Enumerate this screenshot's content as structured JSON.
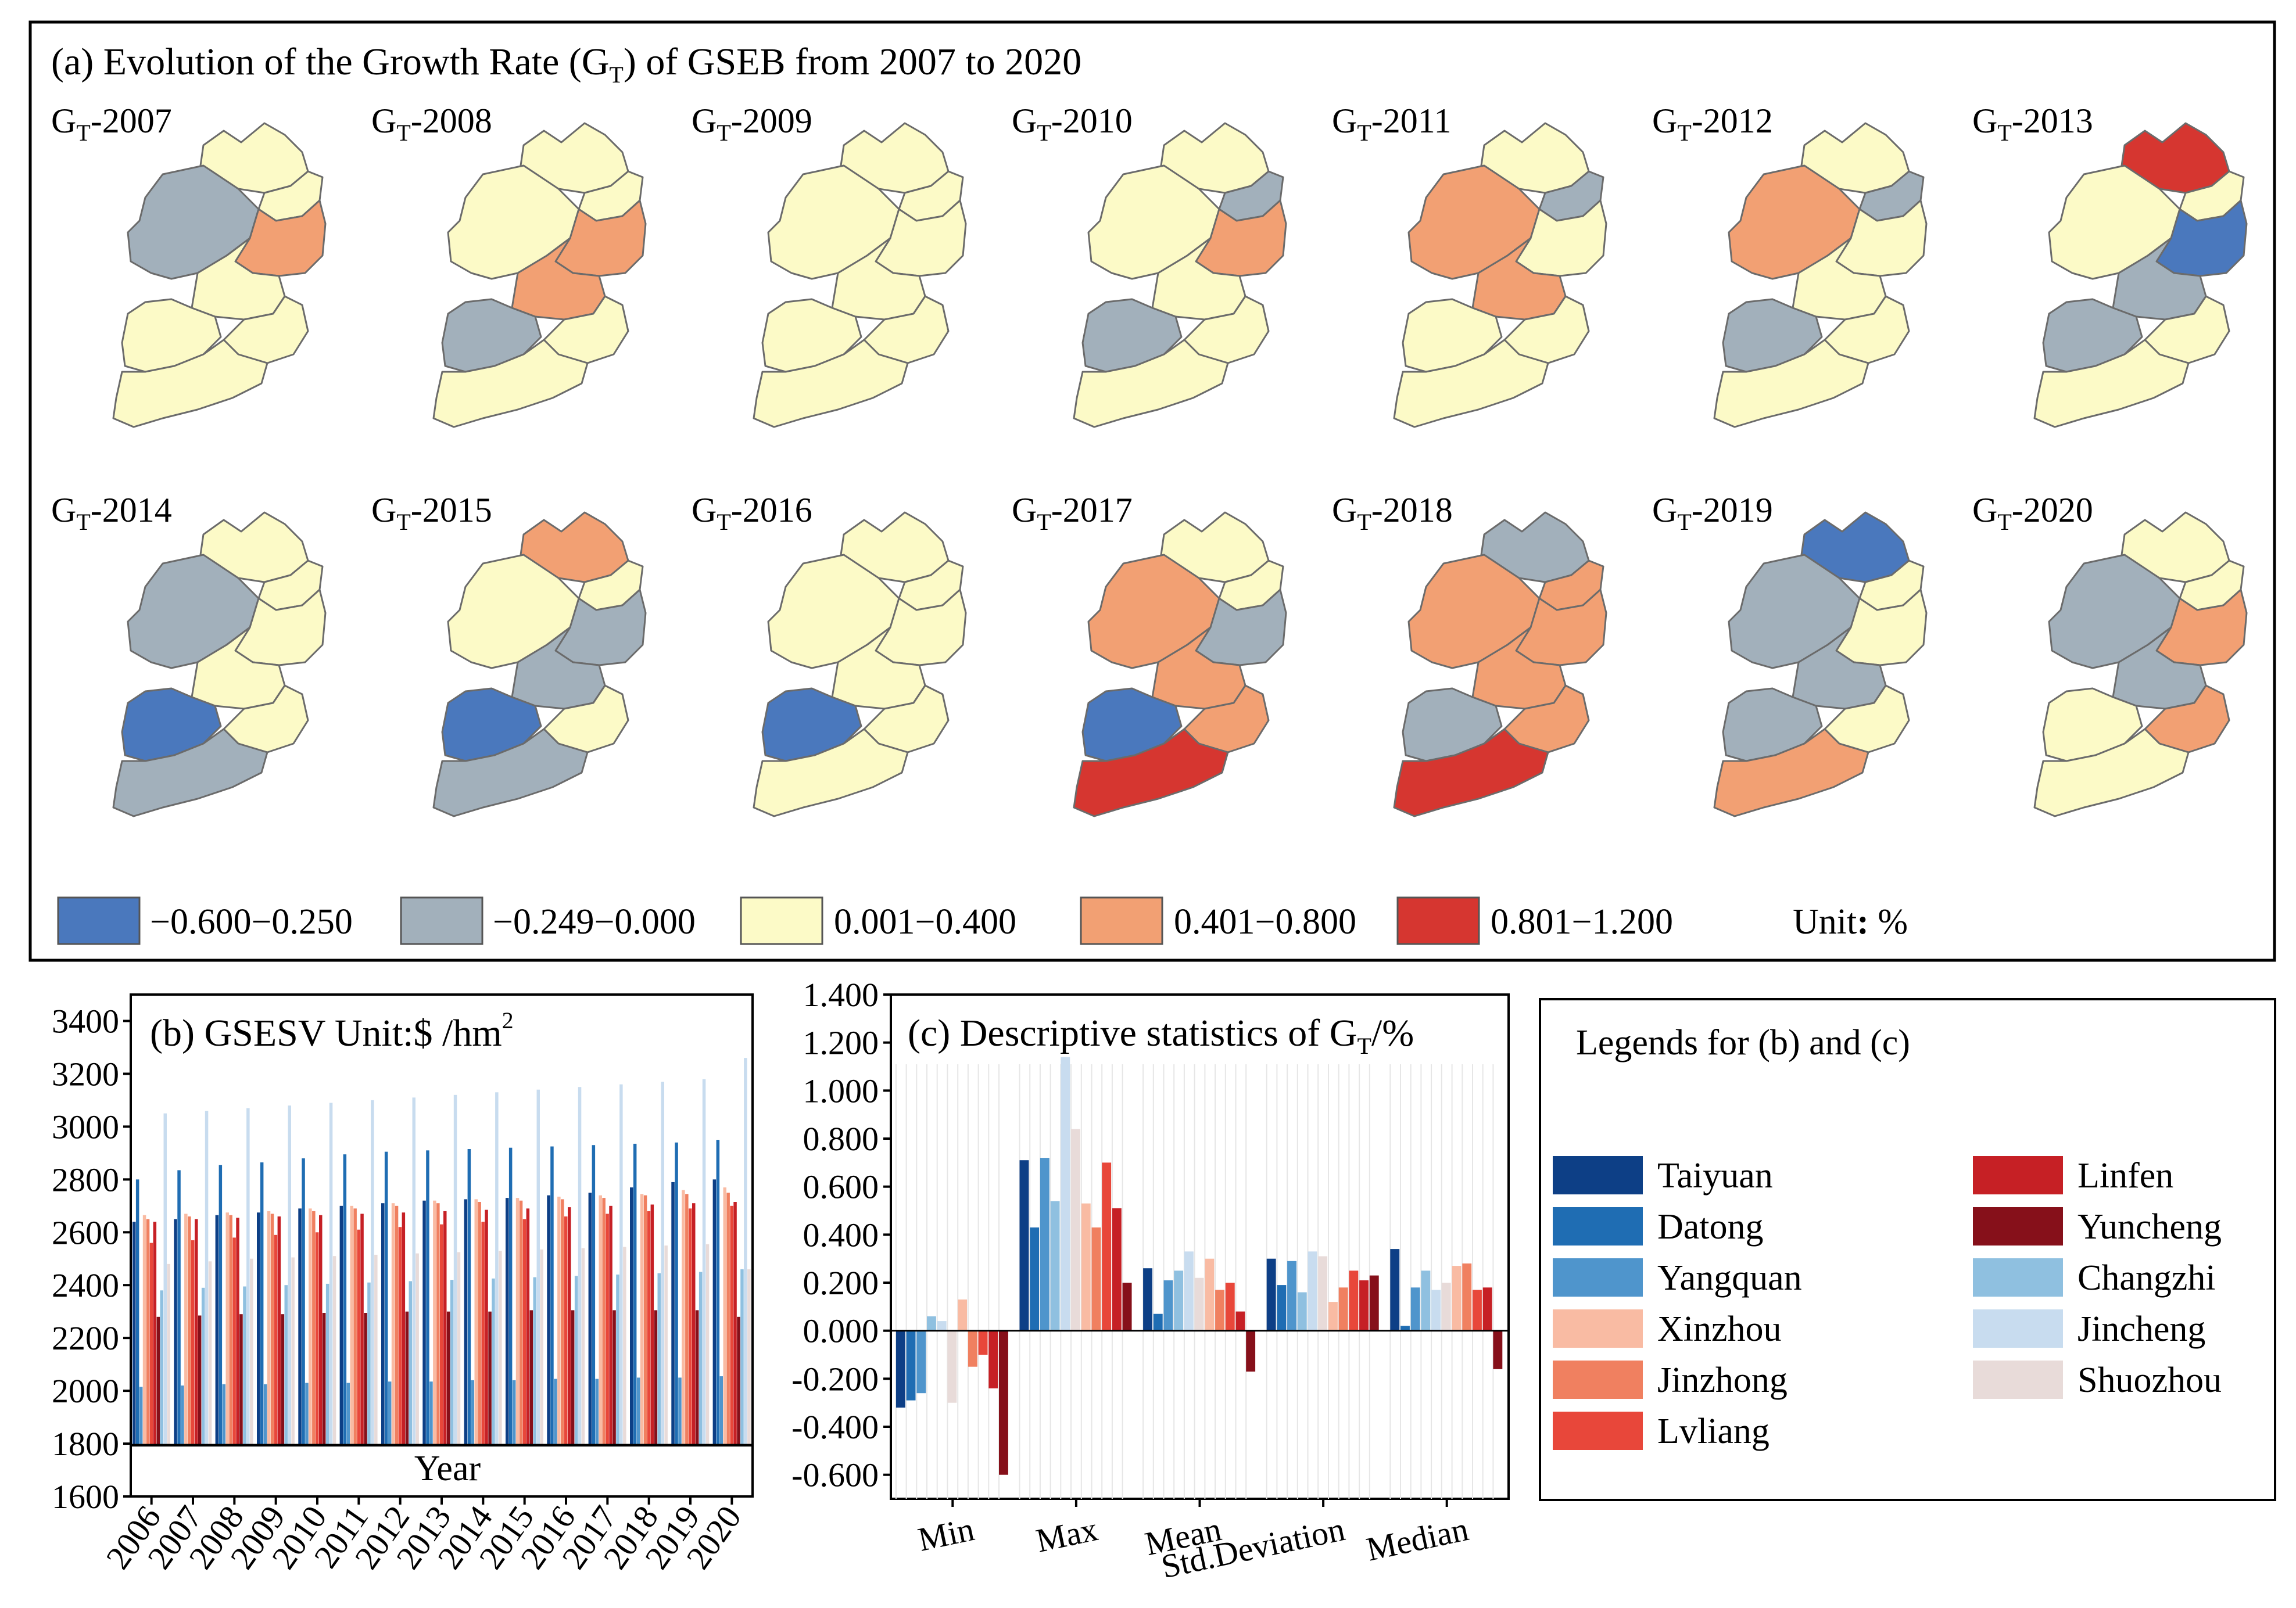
{
  "panel_a": {
    "title": "(a) Evolution of the Growth Rate (G",
    "title_sub": "T",
    "title_tail": ") of GSEB from 2007 to 2020",
    "map_prefix": "G",
    "map_sub": "T",
    "maps": [
      {
        "year": "-2007"
      },
      {
        "year": "-2008"
      },
      {
        "year": "-2009"
      },
      {
        "year": "-2010"
      },
      {
        "year": "-2011"
      },
      {
        "year": "-2012"
      },
      {
        "year": "-2013"
      },
      {
        "year": "-2014"
      },
      {
        "year": "-2015"
      },
      {
        "year": "-2016"
      },
      {
        "year": "-2017"
      },
      {
        "year": "-2018"
      },
      {
        "year": "-2019"
      },
      {
        "year": "-2020"
      }
    ],
    "legend": [
      {
        "label": "−0.600−0.250",
        "color": "#4a78bd"
      },
      {
        "label": "−0.249−0.000",
        "color": "#a2b0bb"
      },
      {
        "label": "0.001−0.400",
        "color": "#fcfac7"
      },
      {
        "label": "0.401−0.800",
        "color": "#f2a073"
      },
      {
        "label": "0.801−1.200",
        "color": "#d63630"
      }
    ],
    "unit_label": "Unit",
    "unit_colon": ":",
    "unit_value": " %"
  },
  "chart_data": [
    {
      "type": "bar",
      "title": "(b) GSESV  Unit:$ /hm",
      "title_sup": "2",
      "xlabel": "Year",
      "ylabel": "",
      "ylim": [
        1600,
        3500
      ],
      "yticks": [
        1600,
        1800,
        2000,
        2200,
        2400,
        2600,
        2800,
        3000,
        3200,
        3400
      ],
      "categories": [
        "2006",
        "2007",
        "2008",
        "2009",
        "2010",
        "2011",
        "2012",
        "2013",
        "2014",
        "2015",
        "2016",
        "2017",
        "2018",
        "2019",
        "2020"
      ],
      "series": [
        {
          "name": "Taiyuan",
          "values": [
            2640,
            2650,
            2665,
            2675,
            2690,
            2700,
            2710,
            2720,
            2725,
            2730,
            2740,
            2750,
            2770,
            2790,
            2800
          ]
        },
        {
          "name": "Datong",
          "values": [
            2800,
            2835,
            2855,
            2865,
            2880,
            2895,
            2905,
            2910,
            2915,
            2920,
            2925,
            2930,
            2935,
            2940,
            2950
          ]
        },
        {
          "name": "Yangquan",
          "values": [
            2015,
            2020,
            2025,
            2025,
            2030,
            2030,
            2035,
            2035,
            2040,
            2040,
            2045,
            2045,
            2050,
            2050,
            2055
          ]
        },
        {
          "name": "Xinzhou",
          "values": [
            2665,
            2670,
            2675,
            2680,
            2690,
            2700,
            2710,
            2720,
            2725,
            2730,
            2735,
            2740,
            2745,
            2760,
            2770
          ]
        },
        {
          "name": "Jinzhong",
          "values": [
            2650,
            2660,
            2665,
            2670,
            2680,
            2690,
            2700,
            2710,
            2715,
            2720,
            2725,
            2730,
            2740,
            2745,
            2750
          ]
        },
        {
          "name": "Lvliang",
          "values": [
            2560,
            2570,
            2580,
            2590,
            2600,
            2610,
            2620,
            2630,
            2640,
            2650,
            2660,
            2670,
            2680,
            2690,
            2700
          ]
        },
        {
          "name": "Linfen",
          "values": [
            2640,
            2650,
            2655,
            2660,
            2665,
            2670,
            2675,
            2680,
            2685,
            2690,
            2695,
            2700,
            2705,
            2710,
            2715
          ]
        },
        {
          "name": "Yuncheng",
          "values": [
            2280,
            2285,
            2290,
            2290,
            2295,
            2295,
            2300,
            2300,
            2300,
            2305,
            2305,
            2305,
            2305,
            2305,
            2280
          ]
        },
        {
          "name": "Changzhi",
          "values": [
            2380,
            2390,
            2395,
            2400,
            2405,
            2410,
            2415,
            2420,
            2425,
            2430,
            2435,
            2440,
            2445,
            2450,
            2460
          ]
        },
        {
          "name": "Jincheng",
          "values": [
            3050,
            3060,
            3070,
            3080,
            3090,
            3100,
            3110,
            3120,
            3130,
            3140,
            3150,
            3160,
            3170,
            3180,
            3260
          ]
        },
        {
          "name": "Shuozhou",
          "values": [
            2480,
            2490,
            2500,
            2505,
            2510,
            2515,
            2520,
            2525,
            2530,
            2535,
            2540,
            2545,
            2550,
            2555,
            2460
          ]
        }
      ]
    },
    {
      "type": "bar",
      "title": "(c) Descriptive statistics of G",
      "title_sub": "T",
      "title_tail": "/%",
      "xlabel": "",
      "ylabel": "",
      "ylim": [
        -0.7,
        1.4
      ],
      "yticks": [
        "-0.600",
        "-0.400",
        "-0.200",
        "0.000",
        "0.200",
        "0.400",
        "0.600",
        "0.800",
        "1.000",
        "1.200",
        "1.400"
      ],
      "categories": [
        "Min",
        "Max",
        "Mean",
        "Std.Deviation",
        "Median"
      ],
      "series": [
        {
          "name": "Taiyuan",
          "values": [
            -0.32,
            0.71,
            0.26,
            0.3,
            0.34
          ]
        },
        {
          "name": "Datong",
          "values": [
            -0.29,
            0.43,
            0.07,
            0.19,
            0.02
          ]
        },
        {
          "name": "Yangquan",
          "values": [
            -0.26,
            0.72,
            0.21,
            0.29,
            0.18
          ]
        },
        {
          "name": "Changzhi",
          "values": [
            0.06,
            0.54,
            0.25,
            0.16,
            0.25
          ]
        },
        {
          "name": "Jincheng",
          "values": [
            0.04,
            1.14,
            0.33,
            0.33,
            0.17
          ]
        },
        {
          "name": "Shuozhou",
          "values": [
            -0.3,
            0.84,
            0.22,
            0.31,
            0.2
          ]
        },
        {
          "name": "Xinzhou",
          "values": [
            0.13,
            0.53,
            0.3,
            0.12,
            0.27
          ]
        },
        {
          "name": "Jinzhong",
          "values": [
            -0.15,
            0.43,
            0.17,
            0.18,
            0.28
          ]
        },
        {
          "name": "Lvliang",
          "values": [
            -0.1,
            0.7,
            0.2,
            0.25,
            0.17
          ]
        },
        {
          "name": "Linfen",
          "values": [
            -0.24,
            0.51,
            0.08,
            0.21,
            0.18
          ]
        },
        {
          "name": "Yuncheng",
          "values": [
            -0.6,
            0.2,
            -0.17,
            0.23,
            -0.16
          ]
        }
      ]
    }
  ],
  "legend_bc": {
    "title": "Legends for (b) and (c)",
    "items": [
      {
        "name": "Taiyuan",
        "color": "#0d3f86"
      },
      {
        "name": "Datong",
        "color": "#1f6db3"
      },
      {
        "name": "Yangquan",
        "color": "#4f95cc"
      },
      {
        "name": "Xinzhou",
        "color": "#f9bba3"
      },
      {
        "name": "Jinzhong",
        "color": "#f08060"
      },
      {
        "name": "Lvliang",
        "color": "#e8473a"
      },
      {
        "name": "Linfen",
        "color": "#c62025"
      },
      {
        "name": "Yuncheng",
        "color": "#86101a"
      },
      {
        "name": "Changzhi",
        "color": "#8fc0e0"
      },
      {
        "name": "Jincheng",
        "color": "#c8dcef"
      },
      {
        "name": "Shuozhou",
        "color": "#e8dbd9"
      }
    ]
  }
}
